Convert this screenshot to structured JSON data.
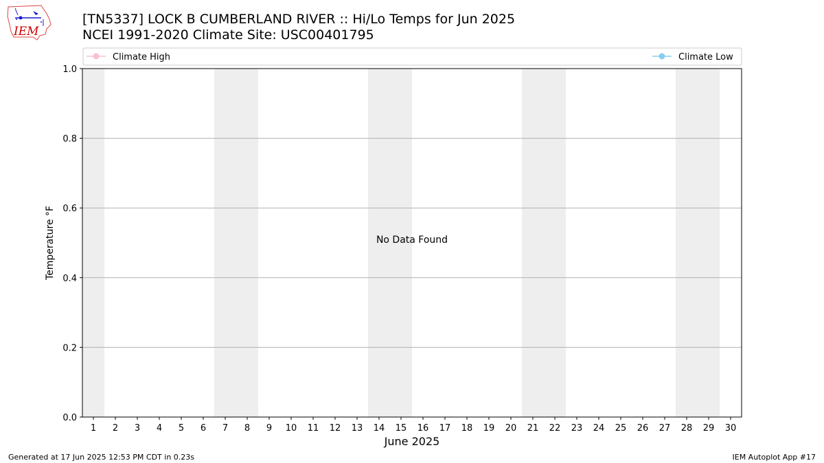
{
  "header": {
    "title_line1": "[TN5337] LOCK B CUMBERLAND RIVER :: Hi/Lo Temps for Jun 2025",
    "title_line2": "NCEI 1991-2020 Climate Site: USC00401795"
  },
  "logo": {
    "text": "IEM",
    "color": "#cc0000"
  },
  "footer": {
    "generated": "Generated at 17 Jun 2025 12:53 PM CDT in 0.23s",
    "app": "IEM Autoplot App #17"
  },
  "chart_data": {
    "type": "line",
    "title": "",
    "xlabel": "June 2025",
    "ylabel": "Temperature °F",
    "x_ticks": [
      "1",
      "2",
      "3",
      "4",
      "5",
      "6",
      "7",
      "8",
      "9",
      "10",
      "11",
      "12",
      "13",
      "14",
      "15",
      "16",
      "17",
      "18",
      "19",
      "20",
      "21",
      "22",
      "23",
      "24",
      "25",
      "26",
      "27",
      "28",
      "29",
      "30"
    ],
    "xlim": [
      0.5,
      30.5
    ],
    "ylim": [
      0,
      1
    ],
    "y_ticks": [
      "0.0",
      "0.2",
      "0.4",
      "0.6",
      "0.8",
      "1.0"
    ],
    "y_tick_values": [
      0,
      0.2,
      0.4,
      0.6,
      0.8,
      1.0
    ],
    "grid": "horizontal",
    "weekend_shading": [
      [
        0.5,
        1.5
      ],
      [
        6.5,
        8.5
      ],
      [
        13.5,
        15.5
      ],
      [
        20.5,
        22.5
      ],
      [
        27.5,
        29.5
      ]
    ],
    "shading_color": "#eeeeee",
    "series": [
      {
        "name": "Climate High",
        "color": "#f9c0cb",
        "values": []
      },
      {
        "name": "Climate Low",
        "color": "#87ceeb",
        "values": []
      }
    ],
    "legend": "top",
    "annotation": "No Data Found"
  }
}
